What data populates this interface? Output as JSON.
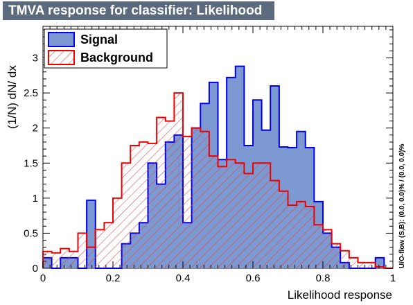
{
  "title": "TMVA response for classifier: Likelihood",
  "chart_data": {
    "type": "histogram",
    "xlabel": "Likelihood response",
    "ylabel": "(1/N) dN/ dx",
    "xlim": [
      0,
      1
    ],
    "ylim": [
      0,
      3.45
    ],
    "x_ticks": [
      "0",
      "0.2",
      "0.4",
      "0.6",
      "0.8",
      "1"
    ],
    "y_ticks": [
      "0",
      "0.5",
      "1",
      "1.5",
      "2",
      "2.5",
      "3"
    ],
    "bins": 40,
    "series": [
      {
        "name": "Signal",
        "fill": "#7d99d1",
        "line": "#0000ee",
        "values": [
          0.15,
          0,
          0.15,
          0.15,
          0,
          0.97,
          0,
          0,
          0,
          0.35,
          0.5,
          0.65,
          1.5,
          1.2,
          1.8,
          1.9,
          0.65,
          2.0,
          2.35,
          2.65,
          1.55,
          2.72,
          2.88,
          1.75,
          2.4,
          1.97,
          2.6,
          1.73,
          1.72,
          1.95,
          1.72,
          0.95,
          0.5,
          0.3,
          0.08,
          0,
          0,
          0,
          0.15,
          0
        ]
      },
      {
        "name": "Background",
        "fill": "hatched",
        "line": "#ee0000",
        "values": [
          0.24,
          0.22,
          0.28,
          0.24,
          0.5,
          0.3,
          0.55,
          0.65,
          1.0,
          1.5,
          1.75,
          1.8,
          1.78,
          2.15,
          2.1,
          2.5,
          1.88,
          2.0,
          1.95,
          1.6,
          1.45,
          1.55,
          1.5,
          1.35,
          1.5,
          1.5,
          1.25,
          1.1,
          0.9,
          0.95,
          0.88,
          0.62,
          0.55,
          0.35,
          0.25,
          0.15,
          0.08,
          0.08,
          0.02,
          0
        ]
      }
    ],
    "legend_position": "top-left",
    "side_label": "U/O-flow (S,B): (0.0, 0.0)% / (0.0, 0.0)%"
  }
}
